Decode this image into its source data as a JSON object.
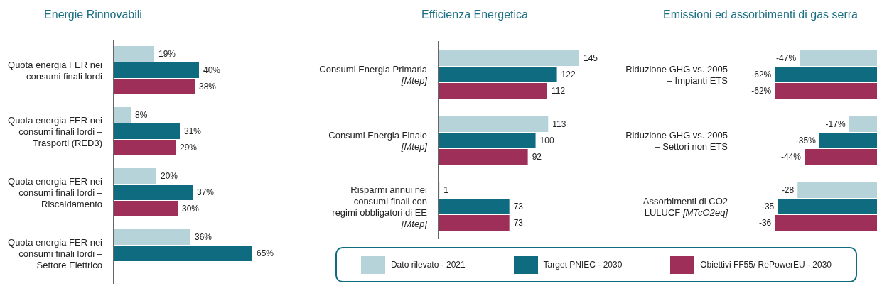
{
  "chart_data": [
    {
      "type": "bar",
      "orientation": "horizontal",
      "title": "Energie Rinnovabili",
      "data_labels": true,
      "categories": [
        "Quota energia FER nei consumi finali lordi",
        "Quota energia FER nei consumi finali lordi – Trasporti (RED3)",
        "Quota energia FER nei consumi finali lordi – Riscaldamento",
        "Quota energia FER nei consumi finali lordi – Settore Elettrico"
      ],
      "series": [
        {
          "color": "#b7d3da",
          "values": [
            19,
            8,
            20,
            36
          ],
          "value_labels": [
            "19%",
            "8%",
            "20%",
            "36%"
          ]
        },
        {
          "color": "#0e6b80",
          "values": [
            40,
            31,
            37,
            65
          ],
          "value_labels": [
            "40%",
            "31%",
            "37%",
            "65%"
          ]
        },
        {
          "color": "#9e2f58",
          "values": [
            38,
            29,
            30,
            null
          ],
          "value_labels": [
            "38%",
            "29%",
            "30%",
            null
          ]
        }
      ]
    },
    {
      "type": "bar",
      "orientation": "horizontal",
      "title": "Efficienza Energetica",
      "categories": [
        "Consumi Energia Primaria [Mtep]",
        "Consumi Energia Finale [Mtep]",
        "Risparmi annui nei consumi finali con regimi obbligatori di EE [Mtep]"
      ],
      "data_labels": true,
      "legend": "bottom",
      "series": [
        {
          "name": "Dato rilevato - 2021",
          "color": "#b7d3da",
          "values": [
            145,
            113,
            1
          ]
        },
        {
          "name": "Target PNIEC - 2030",
          "color": "#0e6b80",
          "values": [
            122,
            100,
            73
          ]
        },
        {
          "name": "Obiettivi FF55/ RePowerEU - 2030",
          "color": "#9e2f58",
          "values": [
            112,
            92,
            73
          ]
        }
      ]
    },
    {
      "type": "bar",
      "orientation": "horizontal",
      "title": "Emissioni ed assorbimenti di gas serra",
      "data_labels": true,
      "categories": [
        "Riduzione GHG vs. 2005 – Impianti ETS",
        "Riduzione GHG vs. 2005 – Settori non ETS"
      ],
      "series": [
        {
          "color": "#b7d3da",
          "values": [
            -47,
            -17
          ],
          "value_labels": [
            "-47%",
            "-17%"
          ]
        },
        {
          "color": "#0e6b80",
          "values": [
            -62,
            -35
          ],
          "value_labels": [
            "-62%",
            "-35%"
          ]
        },
        {
          "color": "#9e2f58",
          "values": [
            -62,
            -44
          ],
          "value_labels": [
            "-62%",
            "-44%"
          ]
        }
      ]
    },
    {
      "type": "bar",
      "orientation": "horizontal",
      "categories": [
        "Assorbimenti di CO2 LULUCF [MTcO2eq]"
      ],
      "data_labels": true,
      "series": [
        {
          "color": "#b7d3da",
          "values": [
            -28
          ]
        },
        {
          "color": "#0e6b80",
          "values": [
            -35
          ]
        },
        {
          "color": "#9e2f58",
          "values": [
            -36
          ]
        }
      ]
    }
  ]
}
